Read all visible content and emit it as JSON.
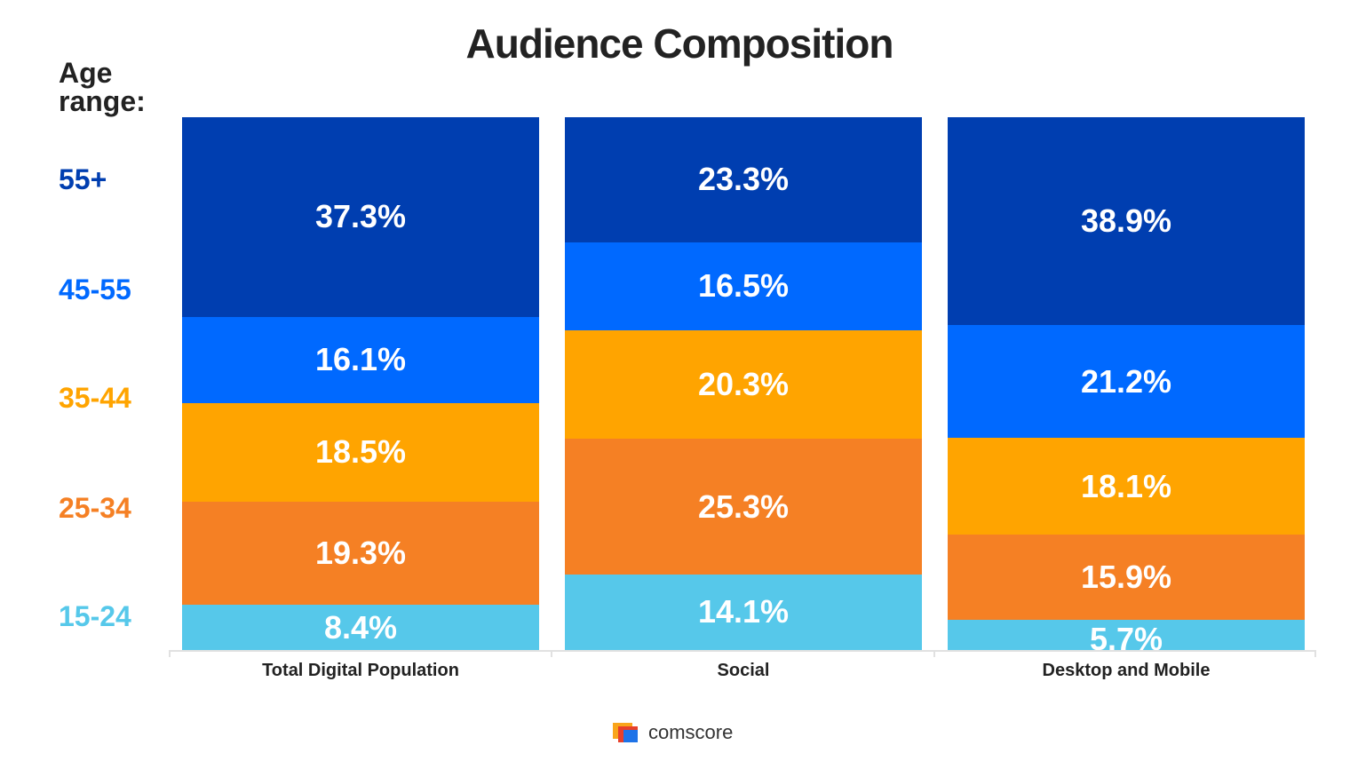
{
  "chart_data": {
    "type": "bar",
    "stacked": true,
    "orientation": "vertical",
    "title": "Audience Composition",
    "legend_title": "Age\nrange:",
    "legend_position": "left",
    "categories": [
      "Total Digital Population",
      "Social",
      "Desktop and Mobile"
    ],
    "series": [
      {
        "name": "15-24",
        "color": "#56c8ea",
        "values": [
          8.4,
          14.1,
          5.7
        ],
        "labels": [
          "8.4%",
          "14.1%",
          "5.7%"
        ]
      },
      {
        "name": "25-34",
        "color": "#f58024",
        "values": [
          19.3,
          25.3,
          15.9
        ],
        "labels": [
          "19.3%",
          "25.3%",
          "15.9%"
        ]
      },
      {
        "name": "35-44",
        "color": "#ffa400",
        "values": [
          18.5,
          20.3,
          18.1
        ],
        "labels": [
          "18.5%",
          "20.3%",
          "18.1%"
        ]
      },
      {
        "name": "45-55",
        "color": "#0069ff",
        "values": [
          16.1,
          16.5,
          21.2
        ],
        "labels": [
          "16.1%",
          "16.5%",
          "21.2%"
        ]
      },
      {
        "name": "55+",
        "color": "#003eb0",
        "values": [
          37.3,
          23.3,
          38.9
        ],
        "labels": [
          "37.3%",
          "23.3%",
          "38.9%"
        ]
      }
    ],
    "ylim": [
      0,
      100
    ],
    "grid": false
  },
  "source": {
    "brand": "comscore",
    "logo_icon": "comscore-logo-icon"
  }
}
